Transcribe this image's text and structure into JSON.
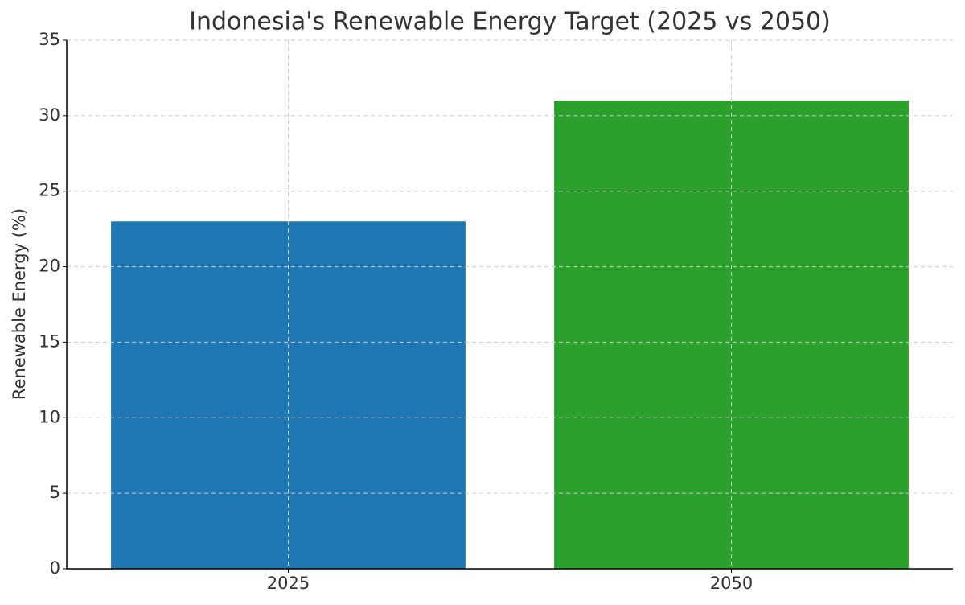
{
  "chart_data": {
    "type": "bar",
    "title": "Indonesia's Renewable Energy Target (2025 vs 2050)",
    "y_label": "Renewable Energy (%)",
    "categories": [
      "2025",
      "2050"
    ],
    "values": [
      23,
      31
    ],
    "colors": [
      "#1f77b4",
      "#2ca02c"
    ],
    "ylim": [
      0,
      35
    ],
    "yticks": [
      0,
      5,
      10,
      15,
      20,
      25,
      30,
      35
    ],
    "grid": true
  }
}
